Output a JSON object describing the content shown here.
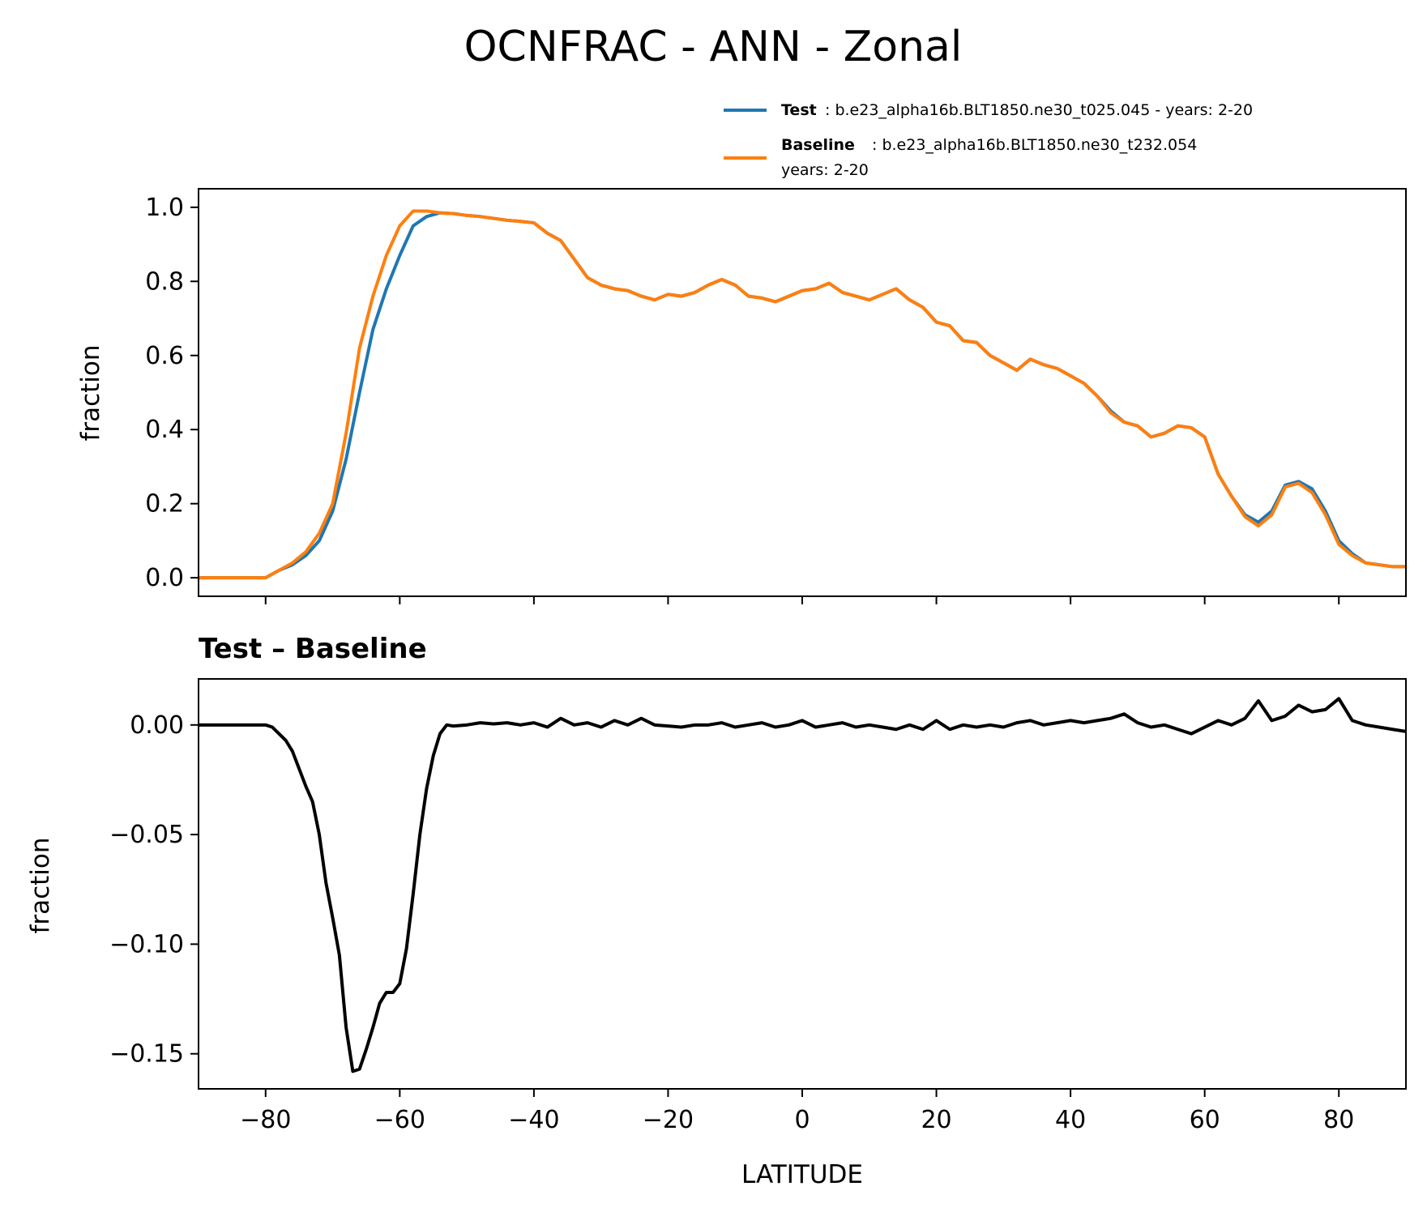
{
  "colors": {
    "test": "#1f77b4",
    "baseline": "#ff7f0e",
    "diff": "#000000"
  },
  "chart_data": [
    {
      "type": "line",
      "title": "OCNFRAC - ANN - Zonal",
      "xlabel": "",
      "ylabel": "fraction",
      "xlim": [
        -90,
        90
      ],
      "ylim": [
        -0.05,
        1.05
      ],
      "x_ticks": [
        -80,
        -60,
        -40,
        -20,
        0,
        20,
        40,
        60,
        80
      ],
      "y_ticks": [
        0.0,
        0.2,
        0.4,
        0.6,
        0.8,
        1.0
      ],
      "y_tick_labels": [
        "0.0",
        "0.2",
        "0.4",
        "0.6",
        "0.8",
        "1.0"
      ],
      "legend": {
        "placement": "above-right",
        "entries": [
          {
            "name": "Test",
            "detail": ": b.e23_alpha16b.BLT1850.ne30_t025.045 - years: 2-20",
            "detail2": ""
          },
          {
            "name": "Baseline",
            "detail": ": b.e23_alpha16b.BLT1850.ne30_t232.054",
            "detail2": "years: 2-20"
          }
        ]
      },
      "x": [
        -90,
        -80,
        -78,
        -76,
        -74,
        -72,
        -70,
        -68,
        -66,
        -64,
        -62,
        -60,
        -58,
        -56,
        -54,
        -52,
        -50,
        -48,
        -46,
        -44,
        -42,
        -40,
        -38,
        -36,
        -34,
        -32,
        -30,
        -28,
        -26,
        -24,
        -22,
        -20,
        -18,
        -16,
        -14,
        -12,
        -10,
        -8,
        -6,
        -4,
        -2,
        0,
        2,
        4,
        6,
        8,
        10,
        12,
        14,
        16,
        18,
        20,
        22,
        24,
        26,
        28,
        30,
        32,
        34,
        36,
        38,
        40,
        42,
        44,
        46,
        48,
        50,
        52,
        54,
        56,
        58,
        60,
        62,
        64,
        66,
        68,
        70,
        72,
        74,
        76,
        78,
        80,
        82,
        84,
        86,
        88,
        90
      ],
      "series": [
        {
          "name": "Test",
          "values": [
            0.0,
            0.0,
            0.02,
            0.035,
            0.06,
            0.1,
            0.18,
            0.32,
            0.5,
            0.67,
            0.78,
            0.87,
            0.95,
            0.975,
            0.985,
            0.983,
            0.978,
            0.975,
            0.97,
            0.965,
            0.962,
            0.958,
            0.93,
            0.91,
            0.86,
            0.81,
            0.79,
            0.78,
            0.775,
            0.76,
            0.75,
            0.765,
            0.76,
            0.77,
            0.79,
            0.805,
            0.79,
            0.76,
            0.755,
            0.745,
            0.76,
            0.775,
            0.78,
            0.795,
            0.77,
            0.76,
            0.75,
            0.765,
            0.78,
            0.75,
            0.73,
            0.69,
            0.68,
            0.64,
            0.635,
            0.6,
            0.58,
            0.56,
            0.59,
            0.575,
            0.565,
            0.545,
            0.525,
            0.49,
            0.45,
            0.42,
            0.41,
            0.38,
            0.39,
            0.41,
            0.405,
            0.38,
            0.28,
            0.22,
            0.17,
            0.15,
            0.18,
            0.25,
            0.26,
            0.24,
            0.18,
            0.1,
            0.065,
            0.04,
            0.035,
            0.03,
            0.03
          ]
        },
        {
          "name": "Baseline",
          "values": [
            0.0,
            0.0,
            0.02,
            0.04,
            0.07,
            0.12,
            0.2,
            0.39,
            0.62,
            0.76,
            0.87,
            0.95,
            0.99,
            0.99,
            0.985,
            0.983,
            0.978,
            0.975,
            0.97,
            0.965,
            0.962,
            0.958,
            0.93,
            0.91,
            0.86,
            0.81,
            0.79,
            0.78,
            0.775,
            0.76,
            0.75,
            0.765,
            0.76,
            0.77,
            0.79,
            0.805,
            0.79,
            0.76,
            0.755,
            0.745,
            0.76,
            0.775,
            0.78,
            0.795,
            0.77,
            0.76,
            0.75,
            0.765,
            0.78,
            0.75,
            0.73,
            0.69,
            0.68,
            0.64,
            0.635,
            0.6,
            0.58,
            0.56,
            0.59,
            0.575,
            0.565,
            0.545,
            0.525,
            0.49,
            0.445,
            0.42,
            0.41,
            0.38,
            0.39,
            0.41,
            0.405,
            0.38,
            0.28,
            0.22,
            0.165,
            0.14,
            0.17,
            0.245,
            0.255,
            0.23,
            0.17,
            0.09,
            0.06,
            0.04,
            0.035,
            0.03,
            0.03
          ]
        }
      ]
    },
    {
      "type": "line",
      "title": "Test – Baseline",
      "xlabel": "LATITUDE",
      "ylabel": "fraction",
      "xlim": [
        -90,
        90
      ],
      "ylim": [
        -0.166,
        0.021
      ],
      "x_ticks": [
        -80,
        -60,
        -40,
        -20,
        0,
        20,
        40,
        60,
        80
      ],
      "x_tick_labels": [
        "−80",
        "−60",
        "−40",
        "−20",
        "0",
        "20",
        "40",
        "60",
        "80"
      ],
      "y_ticks": [
        0.0,
        -0.05,
        -0.1,
        -0.15
      ],
      "y_tick_labels": [
        "0.00",
        "−0.05",
        "−0.10",
        "−0.15"
      ],
      "x": [
        -90,
        -80,
        -79,
        -78,
        -77,
        -76,
        -75,
        -74,
        -73,
        -72,
        -71,
        -70,
        -69,
        -68,
        -67,
        -66,
        -65,
        -64,
        -63,
        -62,
        -61,
        -60,
        -59,
        -58,
        -57,
        -56,
        -55,
        -54,
        -53,
        -52,
        -50,
        -48,
        -46,
        -44,
        -42,
        -40,
        -38,
        -36,
        -34,
        -32,
        -30,
        -28,
        -26,
        -24,
        -22,
        -20,
        -18,
        -16,
        -14,
        -12,
        -10,
        -8,
        -6,
        -4,
        -2,
        0,
        2,
        4,
        6,
        8,
        10,
        12,
        14,
        16,
        18,
        20,
        22,
        24,
        26,
        28,
        30,
        32,
        34,
        36,
        38,
        40,
        42,
        44,
        46,
        48,
        50,
        52,
        54,
        56,
        58,
        60,
        62,
        64,
        66,
        68,
        70,
        72,
        74,
        76,
        78,
        80,
        82,
        84,
        86,
        88,
        90
      ],
      "series": [
        {
          "name": "",
          "values": [
            0.0,
            0.0,
            -0.001,
            -0.004,
            -0.007,
            -0.012,
            -0.02,
            -0.028,
            -0.035,
            -0.05,
            -0.072,
            -0.088,
            -0.105,
            -0.138,
            -0.158,
            -0.157,
            -0.148,
            -0.138,
            -0.127,
            -0.122,
            -0.122,
            -0.118,
            -0.102,
            -0.077,
            -0.05,
            -0.029,
            -0.014,
            -0.004,
            0.0,
            -0.0005,
            0.0,
            0.001,
            0.0005,
            0.001,
            0.0,
            0.001,
            -0.001,
            0.003,
            0.0,
            0.001,
            -0.001,
            0.002,
            0.0,
            0.003,
            0.0,
            -0.0005,
            -0.001,
            0.0,
            0.0,
            0.001,
            -0.001,
            0.0,
            0.001,
            -0.001,
            0.0,
            0.002,
            -0.001,
            0.0,
            0.001,
            -0.001,
            0.0,
            -0.001,
            -0.002,
            0.0,
            -0.002,
            0.002,
            -0.002,
            0.0,
            -0.001,
            0.0,
            -0.001,
            0.001,
            0.002,
            0.0,
            0.001,
            0.002,
            0.001,
            0.002,
            0.003,
            0.005,
            0.001,
            -0.001,
            0.0,
            -0.002,
            -0.004,
            -0.001,
            0.002,
            0.0,
            0.003,
            0.011,
            0.002,
            0.004,
            0.009,
            0.006,
            0.007,
            0.012,
            0.002,
            0.0,
            -0.001,
            -0.002,
            -0.003
          ]
        }
      ]
    }
  ]
}
